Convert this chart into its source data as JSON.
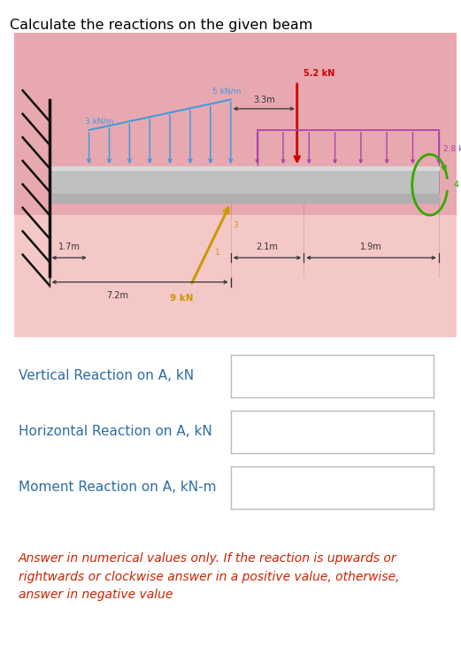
{
  "title": "Calculate the reactions on the given beam",
  "title_color": "#000000",
  "bg_color": "#ffffff",
  "diagram_bg_top": "#e8a0a0",
  "diagram_bg_bottom": "#f0b8b8",
  "wall_hatch_color": "#111111",
  "beam_color_top": "#d0d0d0",
  "beam_color_mid": "#b8b8b8",
  "beam_color_bot": "#a0a0a0",
  "dist_load_blue": "#4499dd",
  "dist_load_purple": "#aa44aa",
  "point_load_color": "#cc0000",
  "moment_color": "#33aa00",
  "inclined_load_color": "#cc9900",
  "dim_color": "#333333",
  "label_color": "#2e6da4",
  "answer_color": "#cc2200",
  "reaction_labels": [
    "Vertical Reaction on A, kN",
    "Horizontal Reaction on A, kN",
    "Moment Reaction on A, kN-m"
  ],
  "answer_line1": "Answer in numerical values only. If the reaction is upwards or",
  "answer_line2": "rightwards or clockwise answer in a positive value, otherwise,",
  "answer_line3": "answer in negative value"
}
